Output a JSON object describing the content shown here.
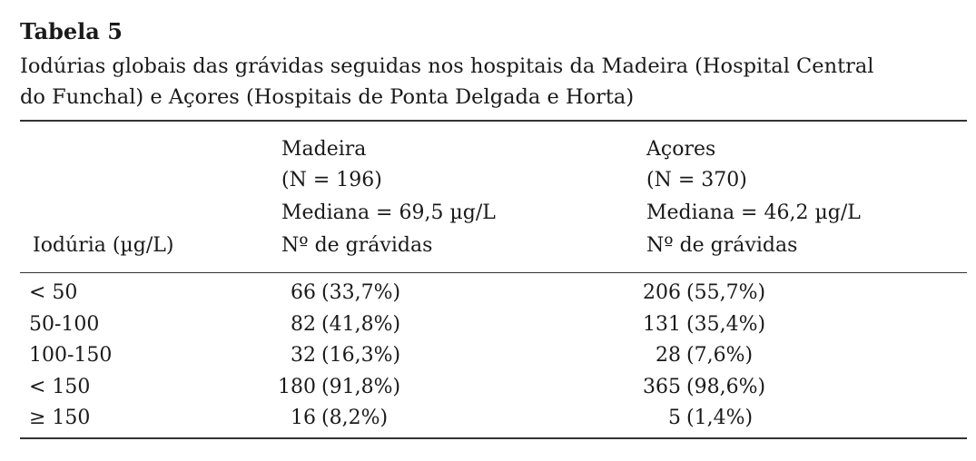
{
  "header": {
    "title": "Tabela 5",
    "caption": [
      "Iodúrias globais das grávidas seguidas nos hospitais da Madeira (Hospital Central",
      "do Funchal) e Açores (Hospitais de Ponta Delgada e Horta)"
    ]
  },
  "table": {
    "columns": [
      [
        "Iodúria (µg/L)"
      ],
      [
        "Madeira",
        "(N = 196)",
        "Mediana = 69,5 µg/L",
        "Nº de grávidas"
      ],
      [
        "Açores",
        "(N = 370)",
        "Mediana = 46,2 µg/L",
        "Nº de grávidas"
      ]
    ],
    "rows": [
      [
        "< 50",
        [
          "66",
          "(33,7%)"
        ],
        [
          "206",
          "(55,7%)"
        ]
      ],
      [
        "50-100",
        [
          "82",
          "(41,8%)"
        ],
        [
          "131",
          "(35,4%)"
        ]
      ],
      [
        "100-150",
        [
          "32",
          "(16,3%)"
        ],
        [
          "28",
          "(7,6%)"
        ]
      ],
      [
        "< 150",
        [
          "180",
          "(91,8%)"
        ],
        [
          "365",
          "(98,6%)"
        ]
      ],
      [
        "≥ 150",
        [
          "16",
          "(8,2%)"
        ],
        [
          "5",
          "(1,4%)"
        ]
      ]
    ]
  }
}
